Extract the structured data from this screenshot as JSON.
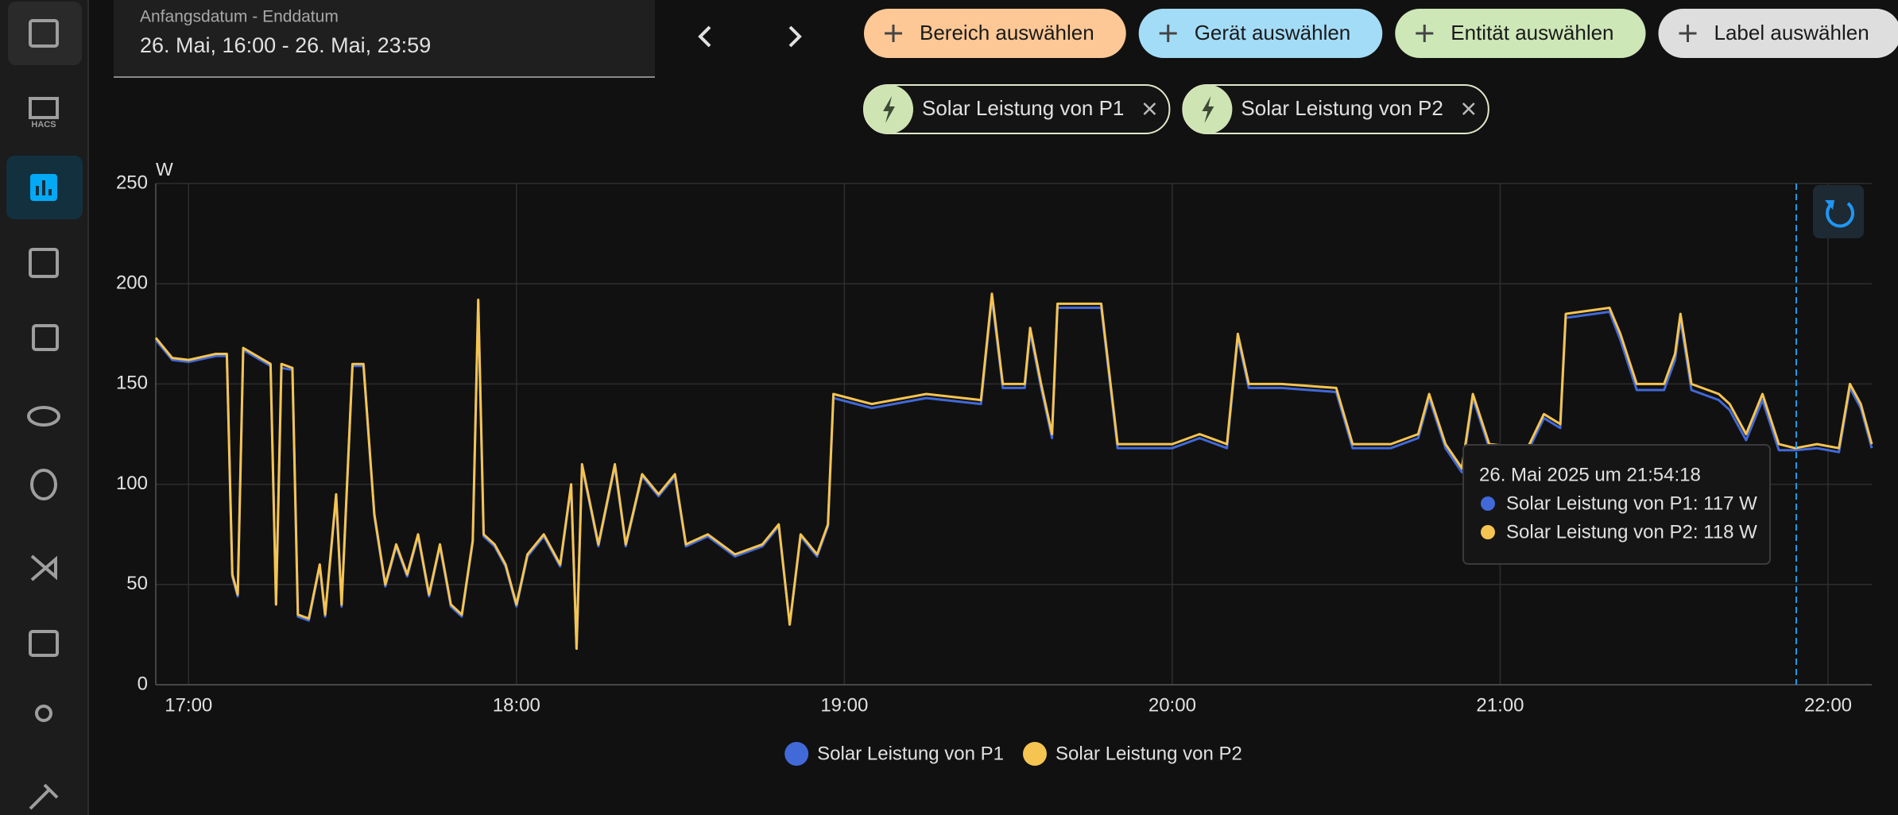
{
  "sidebar": {
    "hacs_label": "HACS"
  },
  "header": {
    "date_label": "Anfangsdatum - Enddatum",
    "date_range": "26. Mai, 16:00 - 26. Mai, 23:59"
  },
  "targets": [
    "Bereich auswählen",
    "Gerät auswählen",
    "Entität auswählen",
    "Label auswählen"
  ],
  "entities": [
    "Solar Leistung von P1",
    "Solar Leistung von P2"
  ],
  "tooltip": {
    "time": "26. Mai 2025 um 21:54:18",
    "lines": [
      "Solar Leistung von P1: 117 W",
      "Solar Leistung von P2: 118 W"
    ]
  },
  "chart_data": {
    "type": "line",
    "y_label": "W",
    "x": [
      "16:54",
      "16:57",
      "17:00",
      "17:05",
      "17:07",
      "17:08",
      "17:09",
      "17:10",
      "17:15",
      "17:16",
      "17:17",
      "17:19",
      "17:20",
      "17:22",
      "17:24",
      "17:25",
      "17:27",
      "17:28",
      "17:30",
      "17:32",
      "17:34",
      "17:36",
      "17:38",
      "17:40",
      "17:42",
      "17:44",
      "17:46",
      "17:48",
      "17:50",
      "17:52",
      "17:53",
      "17:54",
      "17:56",
      "17:58",
      "18:00",
      "18:02",
      "18:05",
      "18:08",
      "18:10",
      "18:11",
      "18:12",
      "18:15",
      "18:18",
      "18:20",
      "18:23",
      "18:26",
      "18:29",
      "18:31",
      "18:35",
      "18:40",
      "18:45",
      "18:48",
      "18:50",
      "18:52",
      "18:55",
      "18:57",
      "18:58",
      "19:05",
      "19:15",
      "19:25",
      "19:27",
      "19:29",
      "19:33",
      "19:34",
      "19:36",
      "19:38",
      "19:39",
      "19:47",
      "19:50",
      "20:00",
      "20:05",
      "20:10",
      "20:12",
      "20:14",
      "20:20",
      "20:30",
      "20:33",
      "20:40",
      "20:45",
      "20:47",
      "20:50",
      "20:53",
      "20:55",
      "20:58",
      "21:05",
      "21:08",
      "21:11",
      "21:12",
      "21:20",
      "21:22",
      "21:25",
      "21:30",
      "21:32",
      "21:33",
      "21:35",
      "21:40",
      "21:42",
      "21:45",
      "21:48",
      "21:51",
      "21:54",
      "21:58",
      "22:02",
      "22:04",
      "22:06",
      "22:08"
    ],
    "series": [
      {
        "name": "Solar Leistung von P1",
        "color": "#4169d8",
        "values": [
          172,
          162,
          161,
          164,
          164,
          54,
          44,
          167,
          159,
          40,
          158,
          157,
          34,
          32,
          59,
          34,
          94,
          39,
          159,
          159,
          84,
          49,
          69,
          54,
          74,
          44,
          69,
          39,
          34,
          71,
          191,
          74,
          69,
          59,
          39,
          64,
          74,
          59,
          99,
          18,
          109,
          69,
          109,
          69,
          104,
          94,
          104,
          69,
          74,
          64,
          69,
          79,
          30,
          74,
          64,
          79,
          143,
          138,
          143,
          140,
          193,
          148,
          148,
          176,
          148,
          123,
          188,
          188,
          118,
          118,
          123,
          118,
          173,
          148,
          148,
          146,
          118,
          118,
          123,
          143,
          118,
          106,
          143,
          118,
          116,
          133,
          128,
          183,
          186,
          172,
          147,
          147,
          162,
          182,
          147,
          142,
          137,
          122,
          142,
          117,
          117,
          118,
          116,
          148,
          138,
          118
        ]
      },
      {
        "name": "Solar Leistung von P2",
        "color": "#f5c451",
        "values": [
          173,
          163,
          162,
          165,
          165,
          55,
          45,
          168,
          160,
          40,
          160,
          158,
          35,
          33,
          60,
          35,
          95,
          40,
          160,
          160,
          85,
          50,
          70,
          55,
          75,
          45,
          70,
          40,
          35,
          72,
          192,
          75,
          70,
          60,
          40,
          65,
          75,
          60,
          100,
          18,
          110,
          70,
          110,
          70,
          105,
          95,
          105,
          70,
          75,
          65,
          70,
          80,
          30,
          75,
          65,
          80,
          145,
          140,
          145,
          142,
          195,
          150,
          150,
          178,
          150,
          125,
          190,
          190,
          120,
          120,
          125,
          120,
          175,
          150,
          150,
          148,
          120,
          120,
          125,
          145,
          120,
          108,
          145,
          120,
          118,
          135,
          130,
          185,
          188,
          175,
          150,
          150,
          165,
          185,
          150,
          145,
          140,
          125,
          145,
          120,
          118,
          120,
          118,
          150,
          140,
          120
        ]
      }
    ],
    "xlim": [
      "16:54",
      "22:08"
    ],
    "xticks": [
      "17:00",
      "18:00",
      "19:00",
      "20:00",
      "21:00",
      "22:00"
    ],
    "ylim": [
      0,
      250
    ],
    "yticks": [
      0,
      50,
      100,
      150,
      200,
      250
    ],
    "grid": true
  }
}
